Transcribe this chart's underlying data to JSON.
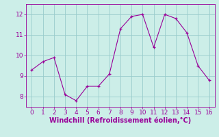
{
  "x": [
    0,
    1,
    2,
    3,
    4,
    5,
    6,
    7,
    8,
    9,
    10,
    11,
    12,
    13,
    14,
    15,
    16
  ],
  "y": [
    9.3,
    9.7,
    9.9,
    8.1,
    7.8,
    8.5,
    8.5,
    9.1,
    11.3,
    11.9,
    12.0,
    10.4,
    12.0,
    11.8,
    11.1,
    9.5,
    8.8
  ],
  "line_color": "#990099",
  "marker_color": "#990099",
  "bg_color": "#cceee8",
  "grid_color": "#99cccc",
  "xlabel": "Windchill (Refroidissement éolien,°C)",
  "xlabel_color": "#990099",
  "xlim": [
    -0.5,
    16.5
  ],
  "ylim": [
    7.5,
    12.5
  ],
  "xticks": [
    0,
    1,
    2,
    3,
    4,
    5,
    6,
    7,
    8,
    9,
    10,
    11,
    12,
    13,
    14,
    15,
    16
  ],
  "yticks": [
    8,
    9,
    10,
    11,
    12
  ],
  "tick_color": "#990099",
  "tick_fontsize": 6.5,
  "xlabel_fontsize": 7.0,
  "linewidth": 0.8,
  "markersize": 3.5
}
